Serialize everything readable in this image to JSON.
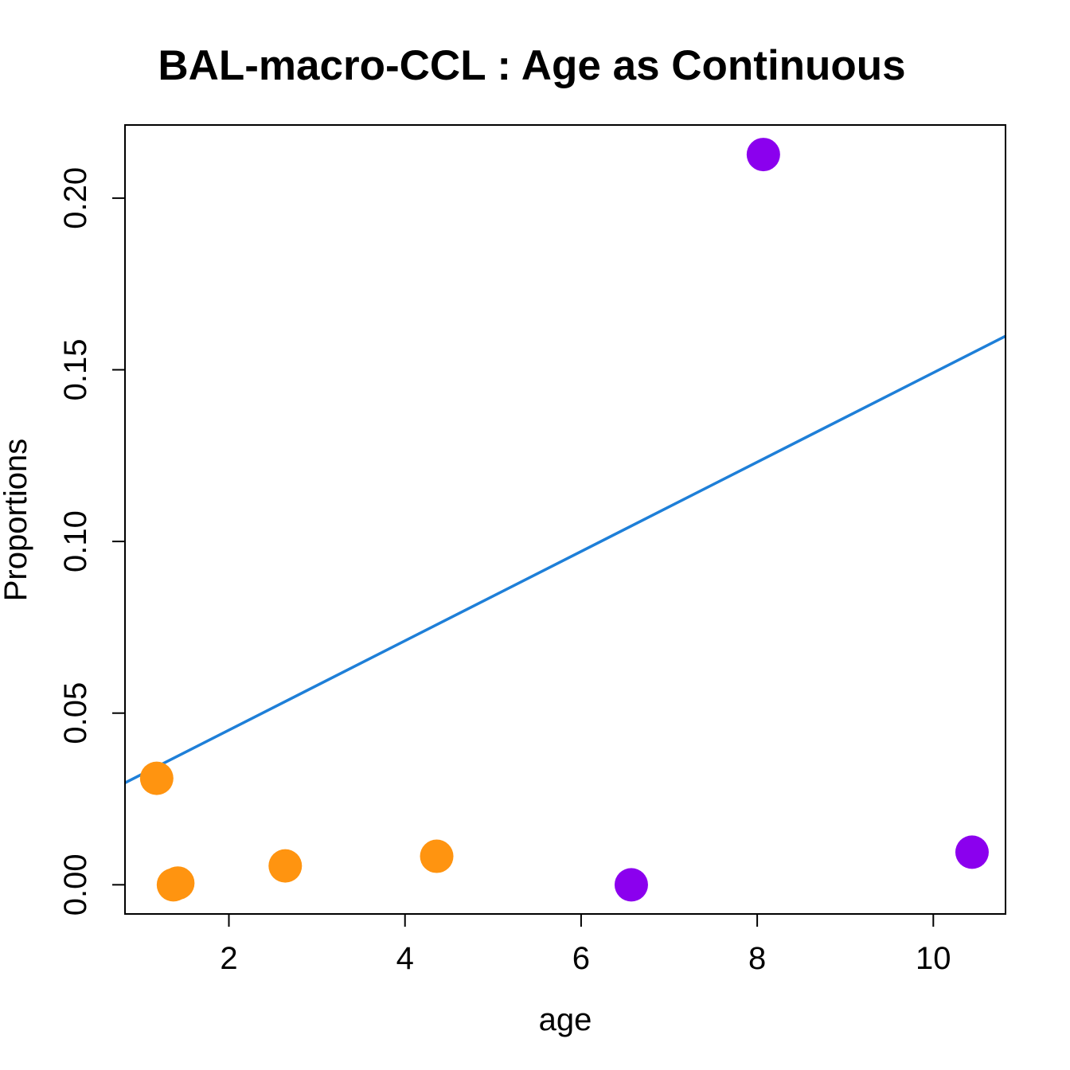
{
  "chart_data": {
    "type": "scatter",
    "title": "BAL-macro-CCL : Age as Continuous",
    "xlabel": "age",
    "ylabel": "Proportions",
    "xlim": [
      0.82,
      10.82
    ],
    "ylim": [
      -0.0085,
      0.2213
    ],
    "x_ticks": [
      2,
      4,
      6,
      8,
      10
    ],
    "x_tick_labels": [
      "2",
      "4",
      "6",
      "8",
      "10"
    ],
    "y_ticks": [
      0.0,
      0.05,
      0.1,
      0.15,
      0.2
    ],
    "y_tick_labels": [
      "0.00",
      "0.05",
      "0.10",
      "0.15",
      "0.20"
    ],
    "grid": false,
    "series": [
      {
        "color": "#FF9410",
        "points": [
          {
            "x": 1.18,
            "y": 0.031
          },
          {
            "x": 1.37,
            "y": 0.0
          },
          {
            "x": 1.42,
            "y": 0.0005
          },
          {
            "x": 2.64,
            "y": 0.0055
          },
          {
            "x": 4.36,
            "y": 0.0083
          }
        ]
      },
      {
        "color": "#8B00EE",
        "points": [
          {
            "x": 6.57,
            "y": 0.0
          },
          {
            "x": 8.07,
            "y": 0.2127
          },
          {
            "x": 10.44,
            "y": 0.0095
          }
        ]
      }
    ],
    "fit_line": {
      "color": "#1E7FD8",
      "x": [
        0.82,
        10.82
      ],
      "y": [
        0.0297,
        0.1598
      ]
    }
  }
}
